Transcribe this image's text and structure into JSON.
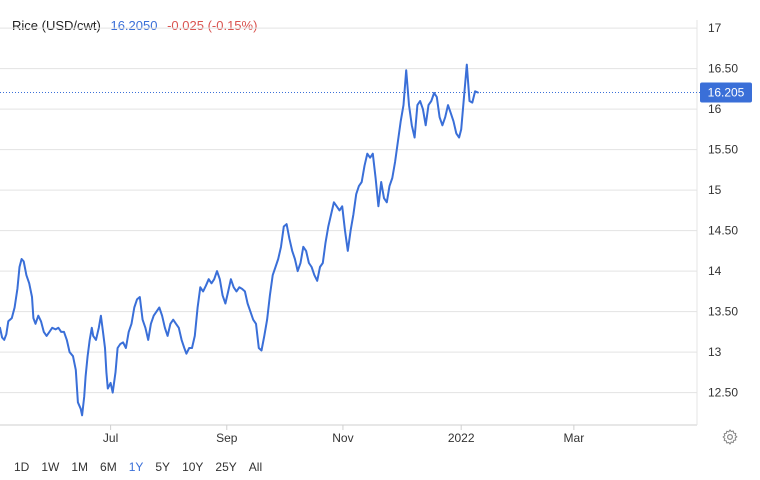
{
  "header": {
    "title": "Rice (USD/cwt)",
    "price": "16.2050",
    "change": "-0.025 (-0.15%)"
  },
  "colors": {
    "line": "#3a6fd8",
    "grid": "#e3e3e3",
    "label_bg": "#3a6fd8",
    "change_negative": "#d9534f"
  },
  "icons": {
    "settings": "gear-icon"
  },
  "ranges": [
    {
      "label": "1D",
      "active": false
    },
    {
      "label": "1W",
      "active": false
    },
    {
      "label": "1M",
      "active": false
    },
    {
      "label": "6M",
      "active": false
    },
    {
      "label": "1Y",
      "active": true
    },
    {
      "label": "5Y",
      "active": false
    },
    {
      "label": "10Y",
      "active": false
    },
    {
      "label": "25Y",
      "active": false
    },
    {
      "label": "All",
      "active": false
    }
  ],
  "chart_data": {
    "type": "line",
    "title": "",
    "ylim": [
      12.1,
      17.1
    ],
    "y_ticks": [
      "12.50",
      "13",
      "13.50",
      "14",
      "14.50",
      "15",
      "15.50",
      "16",
      "16.50",
      "17"
    ],
    "y_tick_values": [
      12.5,
      13,
      13.5,
      14,
      14.5,
      15,
      15.5,
      16,
      16.5,
      17
    ],
    "x_ticks": [
      {
        "label": "Jul",
        "x": 2021.496
      },
      {
        "label": "Sep",
        "x": 2021.663
      },
      {
        "label": "Nov",
        "x": 2021.83
      },
      {
        "label": "2022",
        "x": 2022.0
      },
      {
        "label": "Mar",
        "x": 2022.162
      }
    ],
    "xlim": [
      2021.337,
      2022.339
    ],
    "current_value": 16.205,
    "current_label": "16.205",
    "grid": "horizontal",
    "series": [
      {
        "points": [
          [
            2021.337,
            13.3
          ],
          [
            2021.34,
            13.18
          ],
          [
            2021.343,
            13.15
          ],
          [
            2021.346,
            13.22
          ],
          [
            2021.349,
            13.38
          ],
          [
            2021.354,
            13.42
          ],
          [
            2021.358,
            13.55
          ],
          [
            2021.362,
            13.78
          ],
          [
            2021.365,
            14.05
          ],
          [
            2021.368,
            14.15
          ],
          [
            2021.371,
            14.12
          ],
          [
            2021.375,
            13.95
          ],
          [
            2021.379,
            13.85
          ],
          [
            2021.383,
            13.68
          ],
          [
            2021.385,
            13.42
          ],
          [
            2021.388,
            13.35
          ],
          [
            2021.392,
            13.45
          ],
          [
            2021.396,
            13.38
          ],
          [
            2021.4,
            13.25
          ],
          [
            2021.404,
            13.2
          ],
          [
            2021.408,
            13.25
          ],
          [
            2021.412,
            13.3
          ],
          [
            2021.417,
            13.28
          ],
          [
            2021.421,
            13.3
          ],
          [
            2021.425,
            13.25
          ],
          [
            2021.429,
            13.25
          ],
          [
            2021.433,
            13.15
          ],
          [
            2021.437,
            13.0
          ],
          [
            2021.442,
            12.95
          ],
          [
            2021.446,
            12.78
          ],
          [
            2021.449,
            12.38
          ],
          [
            2021.453,
            12.3
          ],
          [
            2021.455,
            12.22
          ],
          [
            2021.458,
            12.45
          ],
          [
            2021.46,
            12.7
          ],
          [
            2021.463,
            12.95
          ],
          [
            2021.466,
            13.15
          ],
          [
            2021.469,
            13.3
          ],
          [
            2021.471,
            13.2
          ],
          [
            2021.475,
            13.15
          ],
          [
            2021.479,
            13.3
          ],
          [
            2021.482,
            13.45
          ],
          [
            2021.485,
            13.25
          ],
          [
            2021.488,
            13.05
          ],
          [
            2021.49,
            12.75
          ],
          [
            2021.492,
            12.55
          ],
          [
            2021.496,
            12.62
          ],
          [
            2021.499,
            12.5
          ],
          [
            2021.503,
            12.75
          ],
          [
            2021.506,
            13.05
          ],
          [
            2021.51,
            13.1
          ],
          [
            2021.514,
            13.12
          ],
          [
            2021.518,
            13.05
          ],
          [
            2021.522,
            13.25
          ],
          [
            2021.526,
            13.35
          ],
          [
            2021.53,
            13.55
          ],
          [
            2021.534,
            13.65
          ],
          [
            2021.538,
            13.68
          ],
          [
            2021.542,
            13.4
          ],
          [
            2021.546,
            13.3
          ],
          [
            2021.55,
            13.15
          ],
          [
            2021.554,
            13.35
          ],
          [
            2021.558,
            13.45
          ],
          [
            2021.562,
            13.5
          ],
          [
            2021.566,
            13.55
          ],
          [
            2021.57,
            13.45
          ],
          [
            2021.574,
            13.3
          ],
          [
            2021.578,
            13.2
          ],
          [
            2021.582,
            13.35
          ],
          [
            2021.586,
            13.4
          ],
          [
            2021.59,
            13.35
          ],
          [
            2021.594,
            13.3
          ],
          [
            2021.598,
            13.15
          ],
          [
            2021.602,
            13.05
          ],
          [
            2021.605,
            12.98
          ],
          [
            2021.609,
            13.05
          ],
          [
            2021.613,
            13.05
          ],
          [
            2021.617,
            13.2
          ],
          [
            2021.621,
            13.55
          ],
          [
            2021.625,
            13.8
          ],
          [
            2021.629,
            13.75
          ],
          [
            2021.633,
            13.82
          ],
          [
            2021.637,
            13.9
          ],
          [
            2021.641,
            13.85
          ],
          [
            2021.645,
            13.9
          ],
          [
            2021.649,
            14.0
          ],
          [
            2021.653,
            13.9
          ],
          [
            2021.657,
            13.7
          ],
          [
            2021.661,
            13.6
          ],
          [
            2021.665,
            13.75
          ],
          [
            2021.669,
            13.9
          ],
          [
            2021.673,
            13.8
          ],
          [
            2021.677,
            13.75
          ],
          [
            2021.681,
            13.8
          ],
          [
            2021.685,
            13.78
          ],
          [
            2021.689,
            13.75
          ],
          [
            2021.693,
            13.6
          ],
          [
            2021.697,
            13.5
          ],
          [
            2021.701,
            13.4
          ],
          [
            2021.705,
            13.35
          ],
          [
            2021.709,
            13.05
          ],
          [
            2021.713,
            13.02
          ],
          [
            2021.717,
            13.2
          ],
          [
            2021.721,
            13.4
          ],
          [
            2021.725,
            13.7
          ],
          [
            2021.729,
            13.95
          ],
          [
            2021.733,
            14.05
          ],
          [
            2021.737,
            14.15
          ],
          [
            2021.741,
            14.3
          ],
          [
            2021.745,
            14.55
          ],
          [
            2021.749,
            14.58
          ],
          [
            2021.753,
            14.4
          ],
          [
            2021.757,
            14.25
          ],
          [
            2021.761,
            14.15
          ],
          [
            2021.765,
            14.0
          ],
          [
            2021.769,
            14.1
          ],
          [
            2021.773,
            14.3
          ],
          [
            2021.777,
            14.25
          ],
          [
            2021.781,
            14.1
          ],
          [
            2021.785,
            14.05
          ],
          [
            2021.789,
            13.95
          ],
          [
            2021.793,
            13.88
          ],
          [
            2021.797,
            14.05
          ],
          [
            2021.801,
            14.1
          ],
          [
            2021.805,
            14.35
          ],
          [
            2021.809,
            14.55
          ],
          [
            2021.813,
            14.7
          ],
          [
            2021.817,
            14.85
          ],
          [
            2021.821,
            14.8
          ],
          [
            2021.825,
            14.75
          ],
          [
            2021.829,
            14.8
          ],
          [
            2021.833,
            14.5
          ],
          [
            2021.837,
            14.25
          ],
          [
            2021.841,
            14.5
          ],
          [
            2021.845,
            14.7
          ],
          [
            2021.849,
            14.95
          ],
          [
            2021.853,
            15.05
          ],
          [
            2021.857,
            15.1
          ],
          [
            2021.861,
            15.3
          ],
          [
            2021.865,
            15.45
          ],
          [
            2021.869,
            15.4
          ],
          [
            2021.873,
            15.45
          ],
          [
            2021.877,
            15.15
          ],
          [
            2021.881,
            14.8
          ],
          [
            2021.885,
            15.1
          ],
          [
            2021.889,
            14.9
          ],
          [
            2021.893,
            14.85
          ],
          [
            2021.897,
            15.05
          ],
          [
            2021.901,
            15.15
          ],
          [
            2021.905,
            15.35
          ],
          [
            2021.909,
            15.6
          ],
          [
            2021.913,
            15.85
          ],
          [
            2021.917,
            16.05
          ],
          [
            2021.921,
            16.48
          ],
          [
            2021.925,
            16.05
          ],
          [
            2021.929,
            15.8
          ],
          [
            2021.933,
            15.65
          ],
          [
            2021.937,
            16.05
          ],
          [
            2021.941,
            16.1
          ],
          [
            2021.945,
            16.0
          ],
          [
            2021.949,
            15.8
          ],
          [
            2021.953,
            16.05
          ],
          [
            2021.957,
            16.1
          ],
          [
            2021.961,
            16.2
          ],
          [
            2021.965,
            16.15
          ],
          [
            2021.969,
            15.9
          ],
          [
            2021.973,
            15.8
          ],
          [
            2021.977,
            15.9
          ],
          [
            2021.981,
            16.05
          ],
          [
            2021.985,
            15.95
          ],
          [
            2021.989,
            15.85
          ],
          [
            2021.993,
            15.7
          ],
          [
            2021.997,
            15.65
          ],
          [
            2022.0,
            15.75
          ],
          [
            2022.004,
            16.15
          ],
          [
            2022.008,
            16.55
          ],
          [
            2022.012,
            16.1
          ],
          [
            2022.016,
            16.08
          ],
          [
            2022.02,
            16.22
          ],
          [
            2022.024,
            16.205
          ]
        ]
      }
    ]
  }
}
